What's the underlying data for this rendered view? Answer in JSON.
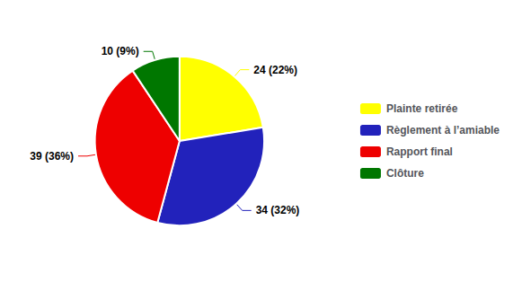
{
  "chart_data": {
    "type": "pie",
    "categories": [
      "Plainte retirée",
      "Règlement à l’amiable",
      "Rapport final",
      "Clôture"
    ],
    "values": [
      24,
      34,
      39,
      10
    ],
    "value_labels": [
      "24 (22%)",
      "34 (32%)",
      "39 (36%)",
      "10 (9%)"
    ],
    "colors": [
      "#ffff00",
      "#2222bb",
      "#ee0000",
      "#007700"
    ],
    "data_labels": true,
    "legend": "right"
  }
}
